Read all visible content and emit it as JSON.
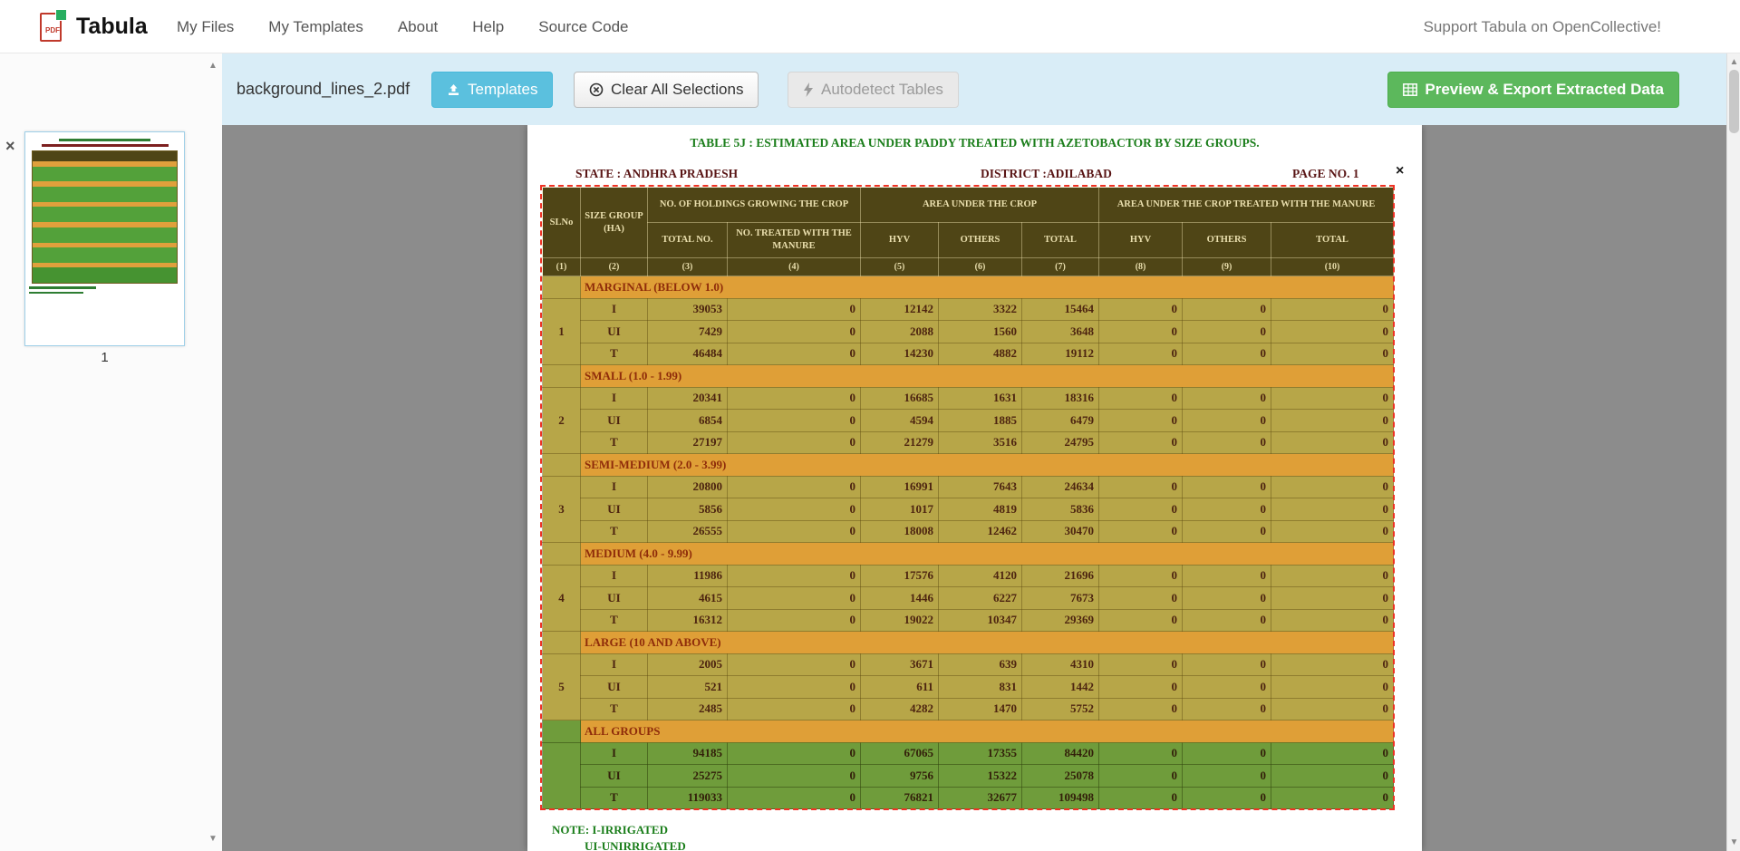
{
  "navbar": {
    "brand": "Tabula",
    "links": [
      "My Files",
      "My Templates",
      "About",
      "Help",
      "Source Code"
    ],
    "support": "Support Tabula on OpenCollective!"
  },
  "toolbar": {
    "filename": "background_lines_2.pdf",
    "templates": "Templates",
    "clear": "Clear All Selections",
    "autodetect": "Autodetect Tables",
    "export": "Preview & Export Extracted Data"
  },
  "sidebar": {
    "page_number": "1",
    "remove_icon": "×"
  },
  "document": {
    "title": "TABLE 5J : ESTIMATED AREA UNDER PADDY  TREATED WITH AZETOBACTOR BY SIZE GROUPS.",
    "state": "STATE :  ANDHRA PRADESH",
    "district": "DISTRICT :ADILABAD",
    "page": "PAGE NO. 1",
    "close_icon": "×",
    "note1": "NOTE: I-IRRIGATED",
    "note2": "UI-UNIRRIGATED",
    "table": {
      "header": {
        "slno": "SLNo",
        "size_group": "SIZE GROUP (HA)",
        "holdings": "NO. OF HOLDINGS GROWING THE CROP",
        "area_crop": "AREA UNDER THE CROP",
        "area_treated": "AREA UNDER THE CROP TREATED WITH THE  MANURE",
        "sub": [
          "TOTAL NO.",
          "NO. TREATED WITH THE MANURE",
          "HYV",
          "OTHERS",
          "TOTAL",
          "HYV",
          "OTHERS",
          "TOTAL"
        ],
        "index": [
          "(1)",
          "(2)",
          "(3)",
          "(4)",
          "(5)",
          "(6)",
          "(7)",
          "(8)",
          "(9)",
          "(10)"
        ]
      },
      "row_types": [
        "I",
        "UI",
        "T"
      ],
      "groups": [
        {
          "slno": "1",
          "label": "MARGINAL (BELOW 1.0)",
          "rows": [
            {
              "type": "I",
              "values": [
                "39053",
                "0",
                "12142",
                "3322",
                "15464",
                "0",
                "0",
                "0"
              ]
            },
            {
              "type": "UI",
              "values": [
                "7429",
                "0",
                "2088",
                "1560",
                "3648",
                "0",
                "0",
                "0"
              ]
            },
            {
              "type": "T",
              "values": [
                "46484",
                "0",
                "14230",
                "4882",
                "19112",
                "0",
                "0",
                "0"
              ]
            }
          ]
        },
        {
          "slno": "2",
          "label": "SMALL (1.0 - 1.99)",
          "rows": [
            {
              "type": "I",
              "values": [
                "20341",
                "0",
                "16685",
                "1631",
                "18316",
                "0",
                "0",
                "0"
              ]
            },
            {
              "type": "UI",
              "values": [
                "6854",
                "0",
                "4594",
                "1885",
                "6479",
                "0",
                "0",
                "0"
              ]
            },
            {
              "type": "T",
              "values": [
                "27197",
                "0",
                "21279",
                "3516",
                "24795",
                "0",
                "0",
                "0"
              ]
            }
          ]
        },
        {
          "slno": "3",
          "label": "SEMI-MEDIUM (2.0 - 3.99)",
          "rows": [
            {
              "type": "I",
              "values": [
                "20800",
                "0",
                "16991",
                "7643",
                "24634",
                "0",
                "0",
                "0"
              ]
            },
            {
              "type": "UI",
              "values": [
                "5856",
                "0",
                "1017",
                "4819",
                "5836",
                "0",
                "0",
                "0"
              ]
            },
            {
              "type": "T",
              "values": [
                "26555",
                "0",
                "18008",
                "12462",
                "30470",
                "0",
                "0",
                "0"
              ]
            }
          ]
        },
        {
          "slno": "4",
          "label": "MEDIUM (4.0 - 9.99)",
          "rows": [
            {
              "type": "I",
              "values": [
                "11986",
                "0",
                "17576",
                "4120",
                "21696",
                "0",
                "0",
                "0"
              ]
            },
            {
              "type": "UI",
              "values": [
                "4615",
                "0",
                "1446",
                "6227",
                "7673",
                "0",
                "0",
                "0"
              ]
            },
            {
              "type": "T",
              "values": [
                "16312",
                "0",
                "19022",
                "10347",
                "29369",
                "0",
                "0",
                "0"
              ]
            }
          ]
        },
        {
          "slno": "5",
          "label": "LARGE (10 AND ABOVE)",
          "rows": [
            {
              "type": "I",
              "values": [
                "2005",
                "0",
                "3671",
                "639",
                "4310",
                "0",
                "0",
                "0"
              ]
            },
            {
              "type": "UI",
              "values": [
                "521",
                "0",
                "611",
                "831",
                "1442",
                "0",
                "0",
                "0"
              ]
            },
            {
              "type": "T",
              "values": [
                "2485",
                "0",
                "4282",
                "1470",
                "5752",
                "0",
                "0",
                "0"
              ]
            }
          ]
        },
        {
          "slno": "",
          "label": "ALL GROUPS",
          "rows": [
            {
              "type": "I",
              "values": [
                "94185",
                "0",
                "67065",
                "17355",
                "84420",
                "0",
                "0",
                "0"
              ]
            },
            {
              "type": "UI",
              "values": [
                "25275",
                "0",
                "9756",
                "15322",
                "25078",
                "0",
                "0",
                "0"
              ]
            },
            {
              "type": "T",
              "values": [
                "119033",
                "0",
                "76821",
                "32677",
                "109498",
                "0",
                "0",
                "0"
              ]
            }
          ]
        }
      ]
    }
  },
  "colors": {
    "toolbar_bg": "#d9edf7",
    "templates_btn": "#5bc0de",
    "export_btn": "#5cb85c",
    "selection_red": "#ee3124",
    "table_header_bg": "#4f4516",
    "table_body_bg": "#b7a648",
    "group_row_bg": "#df9f37",
    "all_groups_bg": "#6f9c3b",
    "viewer_bg": "#8c8c8c"
  }
}
